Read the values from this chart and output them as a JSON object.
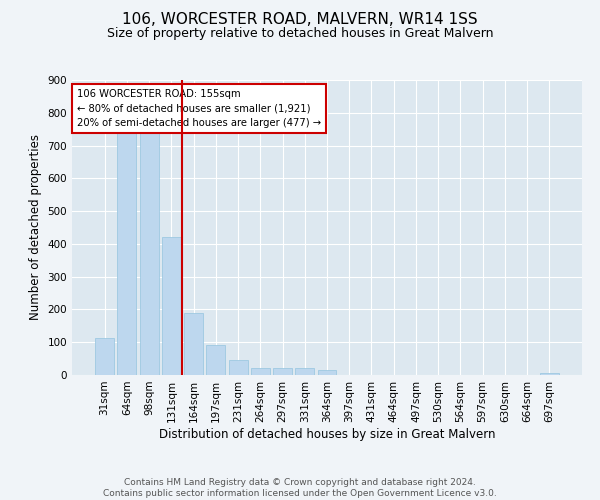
{
  "title": "106, WORCESTER ROAD, MALVERN, WR14 1SS",
  "subtitle": "Size of property relative to detached houses in Great Malvern",
  "xlabel": "Distribution of detached houses by size in Great Malvern",
  "ylabel": "Number of detached properties",
  "bin_labels": [
    "31sqm",
    "64sqm",
    "98sqm",
    "131sqm",
    "164sqm",
    "197sqm",
    "231sqm",
    "264sqm",
    "297sqm",
    "331sqm",
    "364sqm",
    "397sqm",
    "431sqm",
    "464sqm",
    "497sqm",
    "530sqm",
    "564sqm",
    "597sqm",
    "630sqm",
    "664sqm",
    "697sqm"
  ],
  "bar_values": [
    112,
    748,
    750,
    420,
    190,
    93,
    46,
    22,
    22,
    22,
    16,
    0,
    0,
    0,
    0,
    0,
    0,
    0,
    0,
    0,
    5
  ],
  "bar_color": "#bdd7ee",
  "bar_edge_color": "#9ec9e2",
  "vline_color": "#cc0000",
  "box_edge_color": "#cc0000",
  "ylim": [
    0,
    900
  ],
  "yticks": [
    0,
    100,
    200,
    300,
    400,
    500,
    600,
    700,
    800,
    900
  ],
  "background_color": "#dde8f0",
  "fig_background_color": "#f0f4f8",
  "grid_color": "#ffffff",
  "footer_text": "Contains HM Land Registry data © Crown copyright and database right 2024.\nContains public sector information licensed under the Open Government Licence v3.0.",
  "title_fontsize": 11,
  "subtitle_fontsize": 9,
  "xlabel_fontsize": 8.5,
  "ylabel_fontsize": 8.5,
  "tick_fontsize": 7.5,
  "footer_fontsize": 6.5,
  "annotation_text_line1": "106 WORCESTER ROAD: 155sqm",
  "annotation_text_line2": "← 80% of detached houses are smaller (1,921)",
  "annotation_text_line3": "20% of semi-detached houses are larger (477) →"
}
